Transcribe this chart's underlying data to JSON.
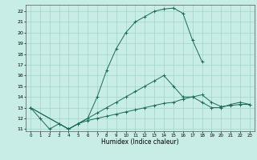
{
  "title": "",
  "xlabel": "Humidex (Indice chaleur)",
  "bg_color": "#c8ece6",
  "grid_color": "#a0d4cc",
  "line_color": "#1a6b5a",
  "xlim": [
    -0.5,
    23.5
  ],
  "ylim": [
    10.8,
    22.6
  ],
  "yticks": [
    11,
    12,
    13,
    14,
    15,
    16,
    17,
    18,
    19,
    20,
    21,
    22
  ],
  "xticks": [
    0,
    1,
    2,
    3,
    4,
    5,
    6,
    7,
    8,
    9,
    10,
    11,
    12,
    13,
    14,
    15,
    16,
    17,
    18,
    19,
    20,
    21,
    22,
    23
  ],
  "line1_x": [
    0,
    1,
    2,
    3,
    4,
    5,
    6,
    7,
    8,
    9,
    10,
    11,
    12,
    13,
    14,
    15,
    16,
    17,
    18
  ],
  "line1_y": [
    13.0,
    12.0,
    11.0,
    11.5,
    11.0,
    11.5,
    12.0,
    14.0,
    16.5,
    18.5,
    20.0,
    21.0,
    21.5,
    22.0,
    22.2,
    22.3,
    21.8,
    19.3,
    17.3
  ],
  "line2_x": [
    0,
    3,
    4,
    5,
    6,
    7,
    8,
    9,
    10,
    11,
    12,
    13,
    14,
    15,
    16,
    17,
    18,
    19,
    20,
    21,
    22,
    23
  ],
  "line2_y": [
    13.0,
    11.5,
    11.0,
    11.5,
    12.0,
    12.5,
    13.0,
    13.5,
    14.0,
    14.5,
    15.0,
    15.5,
    16.0,
    15.0,
    14.0,
    14.0,
    13.5,
    13.0,
    13.0,
    13.3,
    13.5,
    13.3
  ],
  "line3_x": [
    0,
    3,
    4,
    5,
    6,
    7,
    8,
    9,
    10,
    11,
    12,
    13,
    14,
    15,
    16,
    17,
    18,
    19,
    20,
    21,
    22,
    23
  ],
  "line3_y": [
    13.0,
    11.5,
    11.0,
    11.5,
    11.8,
    12.0,
    12.2,
    12.4,
    12.6,
    12.8,
    13.0,
    13.2,
    13.4,
    13.5,
    13.8,
    14.0,
    14.2,
    13.5,
    13.1,
    13.2,
    13.3,
    13.3
  ]
}
